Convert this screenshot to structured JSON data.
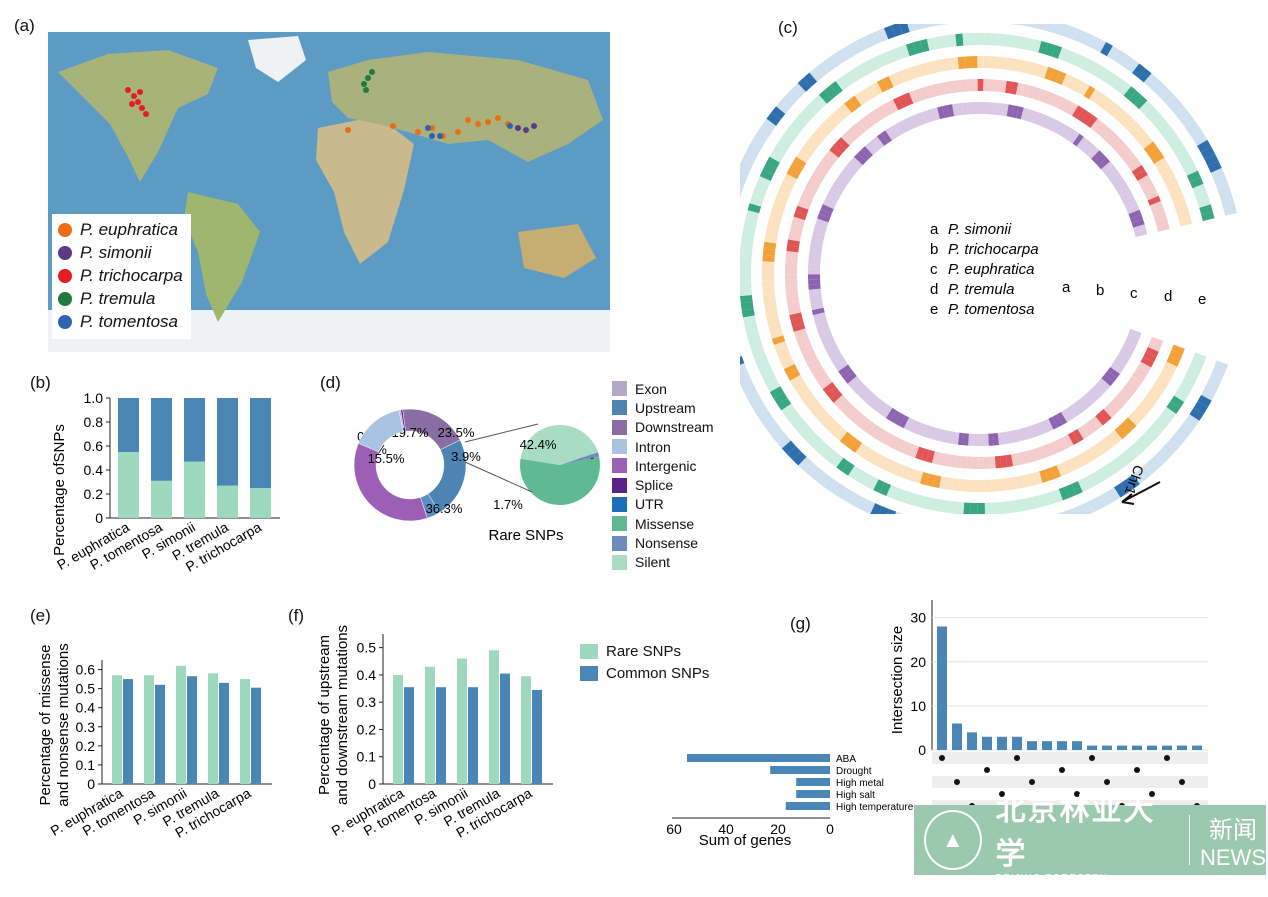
{
  "panels": {
    "a": "(a)",
    "b": "(b)",
    "c": "(c)",
    "d": "(d)",
    "e": "(e)",
    "f": "(f)",
    "g": "(g)"
  },
  "colors": {
    "light": "#9ed8bf",
    "dark": "#4a86b6",
    "ocean": "#5a9bc5",
    "land": "#a9b97a",
    "ice": "#f2f4f5"
  },
  "map": {
    "legend": [
      {
        "label": "P. euphratica",
        "color": "#ec6c16"
      },
      {
        "label": "P. simonii",
        "color": "#5b3b86"
      },
      {
        "label": "P. trichocarpa",
        "color": "#e51c23"
      },
      {
        "label": "P. tremula",
        "color": "#1e7a3d"
      },
      {
        "label": "P. tomentosa",
        "color": "#2f62b1"
      }
    ]
  },
  "species": [
    "P. euphratica",
    "P. tomentosa",
    "P. simonii",
    "P. tremula",
    "P. trichocarpa"
  ],
  "species2": [
    "P. euphratica",
    "P. tomentosa",
    "P. simonii",
    "P. tremula",
    "P. trichocarpa"
  ],
  "chart_data": [
    {
      "panel": "b",
      "type": "bar",
      "stacked": true,
      "ylabel": "Percentage ofSNPs",
      "ylim": [
        0,
        1
      ],
      "yticks": [
        "0",
        "0.2",
        "0.4",
        "0.6",
        "0.8",
        "1.0"
      ],
      "categories": [
        "P. euphratica",
        "P. tomentosa",
        "P. simonii",
        "P. tremula",
        "P. trichocarpa"
      ],
      "series": [
        {
          "values": [
            0.55,
            0.31,
            0.47,
            0.27,
            0.25
          ]
        },
        {
          "values": [
            0.45,
            0.69,
            0.53,
            0.73,
            0.75
          ]
        }
      ]
    },
    {
      "panel": "d",
      "type": "pie",
      "title": "Rare SNPs",
      "donut": [
        {
          "label": "Exon",
          "value": 0.5,
          "text": "0.5%"
        },
        {
          "label": "Splice",
          "value": 0.6,
          "text": "0.6%"
        },
        {
          "label": "Downstream",
          "value": 19.7,
          "text": "19.7%"
        },
        {
          "label": "Upstream",
          "value": 23.5,
          "text": "23.5%"
        },
        {
          "label": "Exon",
          "value": 3.9,
          "text": "3.9%"
        },
        {
          "label": "Intergenic",
          "value": 36.3,
          "text": "36.3%"
        },
        {
          "label": "Intron",
          "value": 15.5,
          "text": "15.5%"
        }
      ],
      "pie": [
        {
          "label": "Missense",
          "value": 56.0,
          "text": "56.0%"
        },
        {
          "label": "Nonsense",
          "value": 1.7,
          "text": "1.7%"
        },
        {
          "label": "Silent",
          "value": 42.4,
          "text": "42.4%"
        }
      ],
      "legend": [
        {
          "label": "Exon",
          "color": "#b3a8c9"
        },
        {
          "label": "Upstream",
          "color": "#4d84b3"
        },
        {
          "label": "Downstream",
          "color": "#8a6ea3"
        },
        {
          "label": "Intron",
          "color": "#a9c3e0"
        },
        {
          "label": "Intergenic",
          "color": "#9d5fb5"
        },
        {
          "label": "Splice",
          "color": "#5a2388"
        },
        {
          "label": "UTR",
          "color": "#1b6fb7"
        },
        {
          "label": "Missense",
          "color": "#5fba93"
        },
        {
          "label": "Nonsense",
          "color": "#6d8cbd"
        },
        {
          "label": "Silent",
          "color": "#a8dcc3"
        }
      ]
    },
    {
      "panel": "e",
      "type": "bar",
      "ylabel": "Percentage of missense and nonsense mutations",
      "ylim": [
        0,
        0.65
      ],
      "yticks": [
        "0",
        "0.1",
        "0.2",
        "0.3",
        "0.4",
        "0.5",
        "0.6"
      ],
      "categories": [
        "P. euphratica",
        "P. tomentosa",
        "P. simonii",
        "P. tremula",
        "P. trichocarpa"
      ],
      "series": [
        {
          "name": "Rare SNPs",
          "values": [
            0.57,
            0.57,
            0.62,
            0.58,
            0.55
          ]
        },
        {
          "name": "Common SNPs",
          "values": [
            0.55,
            0.52,
            0.565,
            0.53,
            0.505
          ]
        }
      ]
    },
    {
      "panel": "f",
      "type": "bar",
      "ylabel": "Percentage of upstream and downstream mutations",
      "ylim": [
        0,
        0.55
      ],
      "yticks": [
        "0",
        "0.1",
        "0.2",
        "0.3",
        "0.4",
        "0.5"
      ],
      "categories": [
        "P. euphratica",
        "P. tomentosa",
        "P. simonii",
        "P. tremula",
        "P. trichocarpa"
      ],
      "series": [
        {
          "name": "Rare SNPs",
          "values": [
            0.4,
            0.43,
            0.46,
            0.49,
            0.395
          ]
        },
        {
          "name": "Common SNPs",
          "values": [
            0.355,
            0.355,
            0.355,
            0.405,
            0.345
          ]
        }
      ]
    },
    {
      "panel": "g",
      "type": "bar",
      "ylabel": "Intersection size",
      "ylim": [
        0,
        34
      ],
      "yticks": [
        "0",
        "10",
        "20",
        "30"
      ],
      "values": [
        28,
        6,
        4,
        3,
        3,
        3,
        2,
        2,
        2,
        2,
        1,
        1,
        1,
        1,
        1,
        1,
        1,
        1
      ],
      "sets": [
        "ABA",
        "Drought",
        "High metal",
        "High salt",
        "High temperature"
      ],
      "set_sizes": [
        55,
        23,
        13,
        13,
        17
      ],
      "xlabel": "Sum of genes",
      "xticks": [
        "60",
        "40",
        "20",
        "0"
      ]
    }
  ],
  "circos": {
    "keys": [
      "a",
      "b",
      "c",
      "d",
      "e"
    ],
    "species": [
      "P. simonii",
      "P. trichocarpa",
      "P. euphratica",
      "P. tremula",
      "P. tomentosa"
    ],
    "chr_label": "Chr1"
  },
  "logo": {
    "cn": "北京林业大学",
    "en": "BEIJING FORESTRY UNIVERSITY",
    "news_cn": "新闻",
    "news_en": "NEWS"
  }
}
